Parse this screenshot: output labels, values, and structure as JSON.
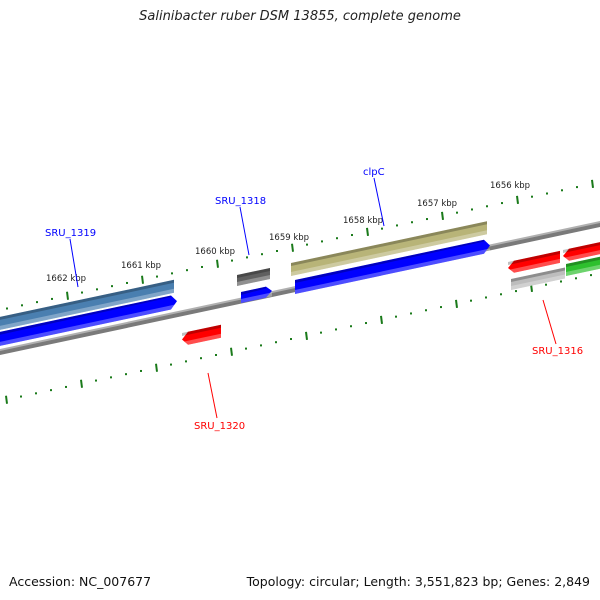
{
  "title": "Salinibacter ruber DSM 13855, complete genome",
  "footer": {
    "accession": "Accession: NC_007677",
    "summary": "Topology: circular; Length: 3,551,823 bp; Genes: 2,849"
  },
  "scale_labels": [
    "1662 kbp",
    "1661 kbp",
    "1660 kbp",
    "1659 kbp",
    "1658 kbp",
    "1657 kbp",
    "1656 kbp"
  ],
  "gene_labels": {
    "sru_1319": "SRU_1319",
    "sru_1318": "SRU_1318",
    "clpc": "clpC",
    "sru_1320": "SRU_1320",
    "sru_1316": "SRU_1316"
  },
  "colors": {
    "forward_label": "#0000ff",
    "reverse_label": "#ff0000",
    "tick": "#1a7a1a",
    "cds_forward": "#0000ff",
    "cds_reverse": "#ff0000",
    "gene_steelblue": "#4a7fb0",
    "gene_khaki": "#b8b478",
    "gene_gray": "#606060",
    "gene_lightgray": "#bdbdbd",
    "gene_green": "#2ec02e",
    "backbone": "#808080"
  }
}
